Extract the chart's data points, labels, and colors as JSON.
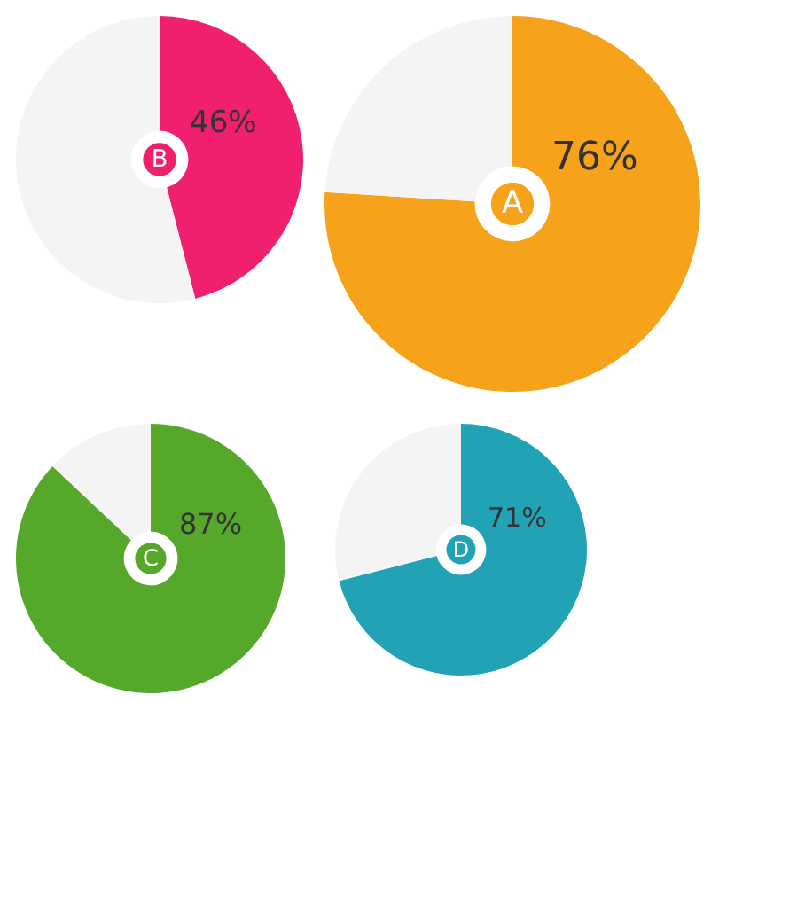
{
  "chart_data": [
    {
      "type": "donut",
      "categories": [
        "B",
        null
      ],
      "values": [
        46,
        54
      ],
      "colors": [
        "#f0206e",
        "#f4f4f4"
      ],
      "value_labels": [
        "46%",
        null
      ]
    },
    {
      "type": "donut",
      "categories": [
        "A",
        null
      ],
      "values": [
        76,
        24
      ],
      "colors": [
        "#f7a21b",
        "#f4f4f4"
      ],
      "value_labels": [
        "76%",
        null
      ]
    },
    {
      "type": "donut",
      "categories": [
        "C",
        null
      ],
      "values": [
        87,
        13
      ],
      "colors": [
        "#56a82a",
        "#f4f4f4"
      ],
      "value_labels": [
        "87%",
        null
      ]
    },
    {
      "type": "donut",
      "categories": [
        "D",
        null
      ],
      "values": [
        71,
        29
      ],
      "colors": [
        "#21a3b5",
        "#f4f4f4"
      ],
      "value_labels": [
        "71%",
        null
      ]
    }
  ]
}
